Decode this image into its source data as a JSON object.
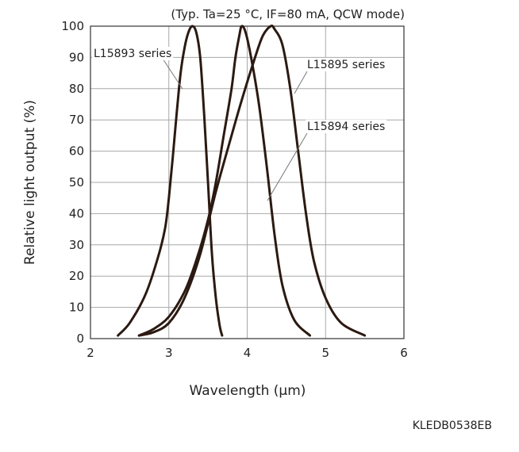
{
  "chart_data": {
    "type": "line",
    "condition_note": "(Typ. Ta=25 °C, IF=80 mA, QCW mode)",
    "xlabel": "Wavelength (μm)",
    "ylabel": "Relative light output (%)",
    "xlim": [
      2,
      6
    ],
    "ylim": [
      0,
      100
    ],
    "xticks": [
      "2",
      "3",
      "4",
      "5",
      "6"
    ],
    "yticks": [
      "0",
      "10",
      "20",
      "30",
      "40",
      "50",
      "60",
      "70",
      "80",
      "90",
      "100"
    ],
    "grid": true,
    "series": [
      {
        "name": "L15893 series",
        "color": "#2b1a12",
        "points": [
          [
            2.35,
            1
          ],
          [
            2.5,
            5
          ],
          [
            2.7,
            14
          ],
          [
            2.85,
            25
          ],
          [
            2.95,
            35
          ],
          [
            3.0,
            45
          ],
          [
            3.05,
            58
          ],
          [
            3.1,
            72
          ],
          [
            3.15,
            85
          ],
          [
            3.2,
            93
          ],
          [
            3.25,
            98
          ],
          [
            3.3,
            100
          ],
          [
            3.35,
            98
          ],
          [
            3.4,
            90
          ],
          [
            3.45,
            72
          ],
          [
            3.5,
            50
          ],
          [
            3.55,
            27
          ],
          [
            3.6,
            13
          ],
          [
            3.65,
            4
          ],
          [
            3.68,
            1
          ]
        ]
      },
      {
        "name": "L15894 series",
        "color": "#2b1a12",
        "points": [
          [
            2.62,
            1
          ],
          [
            2.8,
            3
          ],
          [
            3.0,
            7
          ],
          [
            3.2,
            15
          ],
          [
            3.35,
            25
          ],
          [
            3.5,
            38
          ],
          [
            3.6,
            50
          ],
          [
            3.7,
            65
          ],
          [
            3.8,
            80
          ],
          [
            3.85,
            90
          ],
          [
            3.9,
            97
          ],
          [
            3.93,
            100
          ],
          [
            3.98,
            98
          ],
          [
            4.05,
            90
          ],
          [
            4.15,
            75
          ],
          [
            4.25,
            55
          ],
          [
            4.35,
            33
          ],
          [
            4.45,
            17
          ],
          [
            4.6,
            6
          ],
          [
            4.8,
            1
          ]
        ]
      },
      {
        "name": "L15895 series",
        "color": "#2b1a12",
        "points": [
          [
            2.62,
            1
          ],
          [
            2.8,
            2
          ],
          [
            3.0,
            5
          ],
          [
            3.2,
            13
          ],
          [
            3.4,
            27
          ],
          [
            3.6,
            47
          ],
          [
            3.8,
            65
          ],
          [
            3.95,
            78
          ],
          [
            4.1,
            90
          ],
          [
            4.2,
            97
          ],
          [
            4.3,
            100
          ],
          [
            4.35,
            99
          ],
          [
            4.45,
            94
          ],
          [
            4.55,
            80
          ],
          [
            4.65,
            60
          ],
          [
            4.75,
            40
          ],
          [
            4.85,
            25
          ],
          [
            5.0,
            13
          ],
          [
            5.2,
            5
          ],
          [
            5.5,
            1
          ]
        ]
      }
    ],
    "annotations": [
      {
        "text": "L15893 series"
      },
      {
        "text": "L15894 series"
      },
      {
        "text": "L15895 series"
      }
    ]
  },
  "figure_code": "KLEDB0538EB"
}
